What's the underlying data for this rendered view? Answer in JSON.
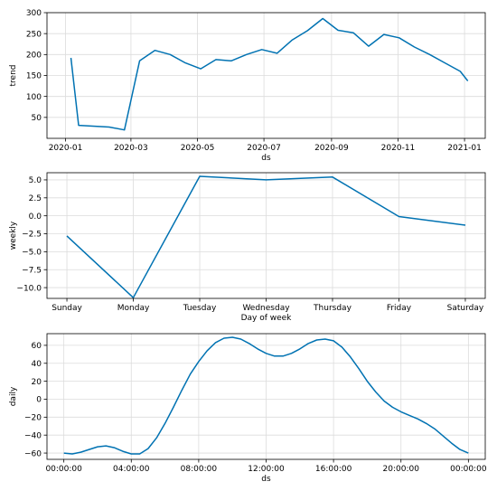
{
  "colors": {
    "series": "#0072B2",
    "grid": "#dcdcdc"
  },
  "chart_data": [
    {
      "type": "line",
      "xlabel": "ds",
      "ylabel": "trend",
      "grid": true,
      "ylim": [
        0,
        300
      ],
      "xlim": [
        "2019-12-15",
        "2021-01-20"
      ],
      "x_ticks": [
        {
          "value": "2020-01-01",
          "label": "2020-01"
        },
        {
          "value": "2020-03-01",
          "label": "2020-03"
        },
        {
          "value": "2020-05-01",
          "label": "2020-05"
        },
        {
          "value": "2020-07-01",
          "label": "2020-07"
        },
        {
          "value": "2020-09-01",
          "label": "2020-09"
        },
        {
          "value": "2020-11-01",
          "label": "2020-11"
        },
        {
          "value": "2021-01-01",
          "label": "2021-01"
        }
      ],
      "y_ticks": [
        50,
        100,
        150,
        200,
        250,
        300
      ],
      "x": [
        "2020-01-06",
        "2020-01-13",
        "2020-02-10",
        "2020-02-24",
        "2020-03-09",
        "2020-03-23",
        "2020-04-06",
        "2020-04-20",
        "2020-05-04",
        "2020-05-18",
        "2020-06-01",
        "2020-06-15",
        "2020-06-29",
        "2020-07-13",
        "2020-07-27",
        "2020-08-10",
        "2020-08-24",
        "2020-09-07",
        "2020-09-21",
        "2020-10-05",
        "2020-10-19",
        "2020-11-02",
        "2020-11-16",
        "2020-11-30",
        "2020-12-14",
        "2020-12-28",
        "2021-01-04"
      ],
      "y": [
        192,
        31,
        27,
        20,
        185,
        210,
        200,
        180,
        166,
        188,
        185,
        200,
        212,
        203,
        235,
        257,
        286,
        258,
        252,
        220,
        248,
        240,
        218,
        200,
        180,
        160,
        137
      ]
    },
    {
      "type": "line",
      "xlabel": "Day of week",
      "ylabel": "weekly",
      "grid": true,
      "ylim": [
        -11.5,
        6.0
      ],
      "categories": [
        "Sunday",
        "Monday",
        "Tuesday",
        "Wednesday",
        "Thursday",
        "Friday",
        "Saturday"
      ],
      "y_ticks": [
        {
          "value": 5.0,
          "label": "5.0"
        },
        {
          "value": 2.5,
          "label": "2.5"
        },
        {
          "value": 0.0,
          "label": "0.0"
        },
        {
          "value": -2.5,
          "label": "−2.5"
        },
        {
          "value": -5.0,
          "label": "−5.0"
        },
        {
          "value": -7.5,
          "label": "−7.5"
        },
        {
          "value": -10.0,
          "label": "−10.0"
        }
      ],
      "values": [
        -2.8,
        -11.4,
        5.5,
        5.0,
        5.4,
        -0.1,
        -1.3
      ]
    },
    {
      "type": "line",
      "xlabel": "ds",
      "ylabel": "daily",
      "grid": true,
      "ylim": [
        -67,
        73
      ],
      "xlim": [
        -1,
        25
      ],
      "x_ticks": [
        {
          "value": 0,
          "label": "00:00:00"
        },
        {
          "value": 4,
          "label": "04:00:00"
        },
        {
          "value": 8,
          "label": "08:00:00"
        },
        {
          "value": 12,
          "label": "12:00:00"
        },
        {
          "value": 16,
          "label": "16:00:00"
        },
        {
          "value": 20,
          "label": "20:00:00"
        },
        {
          "value": 24,
          "label": "00:00:00"
        }
      ],
      "y_ticks": [
        {
          "value": 60,
          "label": "60"
        },
        {
          "value": 40,
          "label": "40"
        },
        {
          "value": 20,
          "label": "20"
        },
        {
          "value": 0,
          "label": "0"
        },
        {
          "value": -20,
          "label": "−20"
        },
        {
          "value": -40,
          "label": "−40"
        },
        {
          "value": -60,
          "label": "−60"
        }
      ],
      "x": [
        0,
        0.5,
        1,
        1.5,
        2,
        2.5,
        3,
        3.5,
        4,
        4.5,
        5,
        5.5,
        6,
        6.5,
        7,
        7.5,
        8,
        8.5,
        9,
        9.5,
        10,
        10.5,
        11,
        11.5,
        12,
        12.5,
        13,
        13.5,
        14,
        14.5,
        15,
        15.5,
        16,
        16.5,
        17,
        17.5,
        18,
        18.5,
        19,
        19.5,
        20,
        20.5,
        21,
        21.5,
        22,
        22.5,
        23,
        23.5,
        24
      ],
      "y": [
        -60,
        -61,
        -59,
        -56,
        -53,
        -52,
        -54,
        -58,
        -61,
        -61,
        -55,
        -43,
        -27,
        -9,
        10,
        28,
        42,
        54,
        63,
        68,
        69,
        67,
        62,
        56,
        51,
        48,
        48,
        51,
        56,
        62,
        66,
        67,
        65,
        58,
        47,
        34,
        20,
        8,
        -2,
        -9,
        -14,
        -18,
        -22,
        -27,
        -33,
        -41,
        -49,
        -56,
        -60
      ]
    }
  ]
}
